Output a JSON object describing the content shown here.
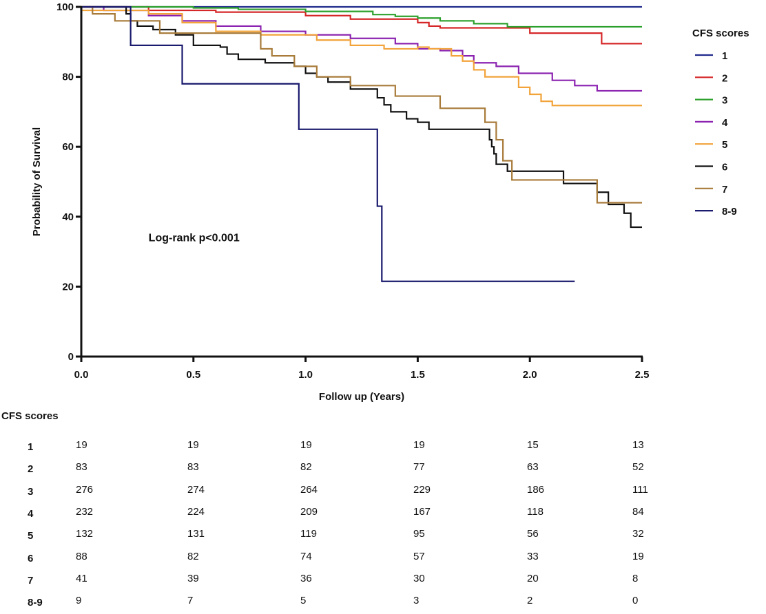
{
  "chart_data": {
    "type": "line",
    "subtype": "kaplan-meier step",
    "title": "",
    "xlabel": "Follow up (Years)",
    "ylabel": "Probability of Survival",
    "xlim": [
      0,
      2.5
    ],
    "ylim": [
      0,
      100
    ],
    "xticks": [
      "0.0",
      "0.5",
      "1.0",
      "1.5",
      "2.0",
      "2.5"
    ],
    "yticks": [
      "0",
      "20",
      "40",
      "60",
      "80",
      "100"
    ],
    "grid": false,
    "annotation": "Log-rank p<0.001",
    "legend": {
      "title": "CFS scores",
      "position": "right"
    },
    "series": [
      {
        "name": "1",
        "color": "#1f2a8c",
        "points": [
          [
            0,
            100
          ],
          [
            2.5,
            100
          ]
        ]
      },
      {
        "name": "2",
        "color": "#d62728",
        "points": [
          [
            0,
            100
          ],
          [
            0.3,
            99
          ],
          [
            0.6,
            98.5
          ],
          [
            1.0,
            97.5
          ],
          [
            1.2,
            96.5
          ],
          [
            1.5,
            95.5
          ],
          [
            1.55,
            94.5
          ],
          [
            1.6,
            94
          ],
          [
            2.0,
            92.5
          ],
          [
            2.32,
            89.5
          ],
          [
            2.5,
            89.5
          ]
        ]
      },
      {
        "name": "3",
        "color": "#2ca02c",
        "points": [
          [
            0,
            100
          ],
          [
            0.5,
            99.7
          ],
          [
            0.7,
            99.3
          ],
          [
            1.0,
            98.7
          ],
          [
            1.3,
            97.8
          ],
          [
            1.4,
            97.3
          ],
          [
            1.5,
            96.8
          ],
          [
            1.6,
            96
          ],
          [
            1.75,
            95.2
          ],
          [
            1.9,
            94.3
          ],
          [
            2.5,
            94.3
          ]
        ]
      },
      {
        "name": "4",
        "color": "#8b22b0",
        "points": [
          [
            0,
            100
          ],
          [
            0.1,
            99
          ],
          [
            0.3,
            97.5
          ],
          [
            0.45,
            96
          ],
          [
            0.6,
            94.5
          ],
          [
            0.8,
            93
          ],
          [
            1.0,
            92
          ],
          [
            1.2,
            91
          ],
          [
            1.4,
            89.5
          ],
          [
            1.5,
            88
          ],
          [
            1.6,
            87.5
          ],
          [
            1.7,
            86
          ],
          [
            1.75,
            84
          ],
          [
            1.85,
            83
          ],
          [
            1.95,
            81
          ],
          [
            2.1,
            79
          ],
          [
            2.2,
            77.5
          ],
          [
            2.3,
            76
          ],
          [
            2.5,
            76
          ]
        ]
      },
      {
        "name": "5",
        "color": "#f2a33a",
        "points": [
          [
            0,
            99
          ],
          [
            0.3,
            98
          ],
          [
            0.45,
            95.5
          ],
          [
            0.6,
            93
          ],
          [
            0.8,
            92
          ],
          [
            1.05,
            90.5
          ],
          [
            1.2,
            89
          ],
          [
            1.35,
            88
          ],
          [
            1.5,
            88.5
          ],
          [
            1.55,
            88
          ],
          [
            1.65,
            86
          ],
          [
            1.7,
            84.5
          ],
          [
            1.75,
            82
          ],
          [
            1.8,
            80
          ],
          [
            1.92,
            80
          ],
          [
            1.95,
            77
          ],
          [
            2.0,
            75
          ],
          [
            2.05,
            73
          ],
          [
            2.1,
            71.8
          ],
          [
            2.5,
            71.8
          ]
        ]
      },
      {
        "name": "6",
        "color": "#111111",
        "points": [
          [
            0,
            100
          ],
          [
            0.2,
            98
          ],
          [
            0.22,
            96
          ],
          [
            0.25,
            94.5
          ],
          [
            0.32,
            93.5
          ],
          [
            0.42,
            92
          ],
          [
            0.5,
            89
          ],
          [
            0.62,
            88.5
          ],
          [
            0.65,
            86.5
          ],
          [
            0.7,
            85
          ],
          [
            0.82,
            84
          ],
          [
            0.95,
            83
          ],
          [
            1.0,
            81
          ],
          [
            1.05,
            80
          ],
          [
            1.1,
            78.5
          ],
          [
            1.2,
            76.5
          ],
          [
            1.32,
            74
          ],
          [
            1.35,
            72
          ],
          [
            1.38,
            70
          ],
          [
            1.45,
            68
          ],
          [
            1.5,
            67
          ],
          [
            1.55,
            65
          ],
          [
            1.8,
            65
          ],
          [
            1.82,
            62
          ],
          [
            1.83,
            60
          ],
          [
            1.84,
            58
          ],
          [
            1.85,
            55
          ],
          [
            1.9,
            53
          ],
          [
            2.15,
            49.5
          ],
          [
            2.28,
            49.5
          ],
          [
            2.3,
            47
          ],
          [
            2.35,
            43.5
          ],
          [
            2.42,
            41
          ],
          [
            2.45,
            37
          ],
          [
            2.5,
            37
          ]
        ]
      },
      {
        "name": "7",
        "color": "#a87b3a",
        "points": [
          [
            0,
            100
          ],
          [
            0.05,
            98
          ],
          [
            0.15,
            96
          ],
          [
            0.35,
            92.5
          ],
          [
            0.55,
            92.5
          ],
          [
            0.8,
            88
          ],
          [
            0.85,
            86
          ],
          [
            0.95,
            83
          ],
          [
            1.05,
            80
          ],
          [
            1.2,
            77.5
          ],
          [
            1.4,
            74.5
          ],
          [
            1.6,
            71
          ],
          [
            1.8,
            67
          ],
          [
            1.85,
            62
          ],
          [
            1.88,
            56
          ],
          [
            1.92,
            50.5
          ],
          [
            2.25,
            50.5
          ],
          [
            2.3,
            44
          ],
          [
            2.5,
            44
          ]
        ]
      },
      {
        "name": "8-9",
        "color": "#1a1a6e",
        "points": [
          [
            0,
            100
          ],
          [
            0.22,
            89
          ],
          [
            0.45,
            78
          ],
          [
            0.97,
            65
          ],
          [
            1.32,
            43
          ],
          [
            1.34,
            21.5
          ],
          [
            2.2,
            21.5
          ]
        ]
      }
    ]
  },
  "risk_table": {
    "title": "CFS scores",
    "rows": [
      {
        "label": "1",
        "values": [
          "19",
          "19",
          "19",
          "19",
          "15",
          "13"
        ]
      },
      {
        "label": "2",
        "values": [
          "83",
          "83",
          "82",
          "77",
          "63",
          "52"
        ]
      },
      {
        "label": "3",
        "values": [
          "276",
          "274",
          "264",
          "229",
          "186",
          "111"
        ]
      },
      {
        "label": "4",
        "values": [
          "232",
          "224",
          "209",
          "167",
          "118",
          "84"
        ]
      },
      {
        "label": "5",
        "values": [
          "132",
          "131",
          "119",
          "95",
          "56",
          "32"
        ]
      },
      {
        "label": "6",
        "values": [
          "88",
          "82",
          "74",
          "57",
          "33",
          "19"
        ]
      },
      {
        "label": "7",
        "values": [
          "41",
          "39",
          "36",
          "30",
          "20",
          "8"
        ]
      },
      {
        "label": "8-9",
        "values": [
          "9",
          "7",
          "5",
          "3",
          "2",
          "0"
        ]
      }
    ]
  }
}
